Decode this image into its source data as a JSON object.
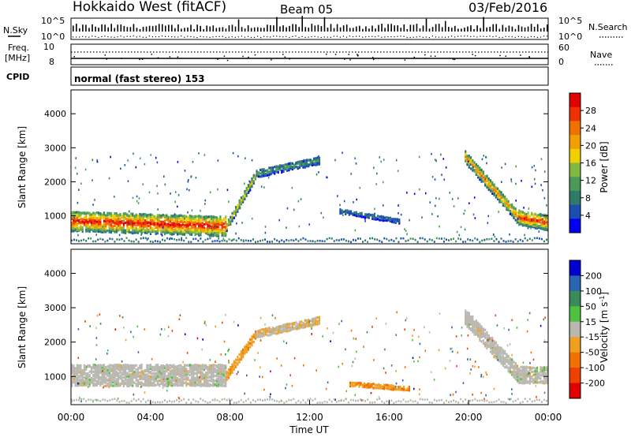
{
  "header": {
    "radar": "Hokkaido West (fitACF)",
    "beam": "Beam 05",
    "date": "03/Feb/2016"
  },
  "noise_panel": {
    "left_label": "N.Sky",
    "right_label": "N.Search",
    "left_ticks": [
      "10^5",
      "10^0"
    ],
    "right_ticks": [
      "10^5",
      "10^0"
    ]
  },
  "freq_panel": {
    "left_label_line1": "Freq.",
    "left_label_line2": "[MHz]",
    "right_label": "Nave",
    "left_ticks": [
      "10",
      "8"
    ],
    "right_ticks": [
      "60",
      "0"
    ]
  },
  "cpid_panel": {
    "label": "CPID",
    "text": "normal (fast stereo) 153"
  },
  "chart_data": [
    {
      "type": "heatmap",
      "title": "",
      "quantity": "Power",
      "ylabel": "Slant Range [km]",
      "yticks": [
        "1000",
        "2000",
        "3000",
        "4000"
      ],
      "ylim": [
        180,
        4700
      ],
      "colorbar": {
        "label": "Power [dB]",
        "ticks": [
          "4",
          "8",
          "12",
          "16",
          "20",
          "24",
          "28"
        ],
        "range": [
          0,
          30
        ],
        "colors": [
          "#0000f0",
          "#1a4fb0",
          "#2f7a6a",
          "#4a9a5a",
          "#80b840",
          "#f0d000",
          "#f0a000",
          "#f07000",
          "#f03000",
          "#e00000"
        ]
      },
      "bands": [
        {
          "t0": 0.0,
          "t1": 7.8,
          "r_start": 900,
          "r_end": 750,
          "thick": 600,
          "power": 28
        },
        {
          "t0": 7.8,
          "t1": 9.3,
          "r_start": 750,
          "r_end": 2300,
          "thick": 300,
          "power": 18
        },
        {
          "t0": 9.3,
          "t1": 12.5,
          "r_start": 2300,
          "r_end": 2700,
          "thick": 250,
          "power": 10
        },
        {
          "t0": 13.5,
          "t1": 16.5,
          "r_start": 1200,
          "r_end": 900,
          "thick": 150,
          "power": 8
        },
        {
          "t0": 19.8,
          "t1": 22.5,
          "r_start": 2800,
          "r_end": 1000,
          "thick": 400,
          "power": 22
        },
        {
          "t0": 22.5,
          "t1": 24.0,
          "r_start": 1000,
          "r_end": 850,
          "thick": 450,
          "power": 26
        }
      ]
    },
    {
      "type": "heatmap",
      "title": "",
      "quantity": "Velocity",
      "ylabel": "Slant Range [km]",
      "xlabel": "Time UT",
      "xticks": [
        "00:00",
        "04:00",
        "08:00",
        "12:00",
        "16:00",
        "20:00",
        "00:00"
      ],
      "yticks": [
        "1000",
        "2000",
        "3000",
        "4000"
      ],
      "ylim": [
        180,
        4700
      ],
      "colorbar": {
        "label": "Velocity [m s^-1]",
        "ticks": [
          "200",
          "100",
          "50",
          "15",
          "-15",
          "-50",
          "-100",
          "-200"
        ],
        "range": [
          -250,
          250
        ],
        "colors": [
          "#0000d0",
          "#2a66b0",
          "#3a8a5a",
          "#50c040",
          "#b8b8b0",
          "#f0a020",
          "#f07000",
          "#f04000",
          "#e00000"
        ]
      },
      "bands": [
        {
          "t0": 0.0,
          "t1": 7.8,
          "r_start": 1100,
          "r_end": 1100,
          "thick": 650,
          "velocity": 0
        },
        {
          "t0": 7.8,
          "t1": 9.3,
          "r_start": 1100,
          "r_end": 2300,
          "thick": 300,
          "velocity": -60
        },
        {
          "t0": 9.3,
          "t1": 12.5,
          "r_start": 2300,
          "r_end": 2700,
          "thick": 250,
          "velocity": -20
        },
        {
          "t0": 14.0,
          "t1": 17.0,
          "r_start": 850,
          "r_end": 700,
          "thick": 150,
          "velocity": -80
        },
        {
          "t0": 19.8,
          "t1": 22.5,
          "r_start": 2800,
          "r_end": 1100,
          "thick": 500,
          "velocity": 0
        },
        {
          "t0": 22.5,
          "t1": 24.0,
          "r_start": 1100,
          "r_end": 1100,
          "thick": 500,
          "velocity": 0
        }
      ]
    }
  ]
}
